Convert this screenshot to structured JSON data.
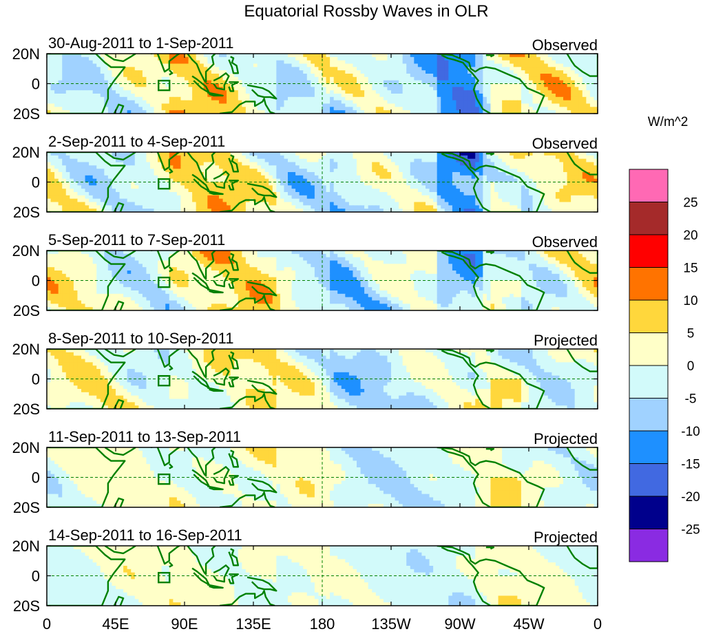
{
  "title": "Equatorial Rossby Waves in OLR",
  "units_label": "W/m^2",
  "lat_labels": [
    "20N",
    "0",
    "20S"
  ],
  "lon_labels": [
    "0",
    "45E",
    "90E",
    "135E",
    "180",
    "135W",
    "90W",
    "45W",
    "0"
  ],
  "panels": [
    {
      "period": "30-Aug-2011 to 1-Sep-2011",
      "kind": "Observed",
      "seed": 1,
      "amp": 1.0
    },
    {
      "period": "2-Sep-2011 to 4-Sep-2011",
      "kind": "Observed",
      "seed": 2,
      "amp": 1.0
    },
    {
      "period": "5-Sep-2011 to 7-Sep-2011",
      "kind": "Observed",
      "seed": 3,
      "amp": 0.95
    },
    {
      "period": "8-Sep-2011 to 10-Sep-2011",
      "kind": "Projected",
      "seed": 4,
      "amp": 0.8
    },
    {
      "period": "11-Sep-2011 to 13-Sep-2011",
      "kind": "Projected",
      "seed": 5,
      "amp": 0.6
    },
    {
      "period": "14-Sep-2011 to 16-Sep-2011",
      "kind": "Projected",
      "seed": 6,
      "amp": 0.45
    }
  ],
  "colorbar": {
    "labels": [
      "25",
      "20",
      "15",
      "10",
      "5",
      "0",
      "-5",
      "-10",
      "-15",
      "-20",
      "-25"
    ],
    "colors_top_to_bottom": [
      "#ff69b4",
      "#a52a2a",
      "#ff0000",
      "#ff7300",
      "#ffd73c",
      "#ffffc8",
      "#d2fafa",
      "#a0d2ff",
      "#1e90ff",
      "#4169e1",
      "#00008c",
      "#8a2be2"
    ]
  },
  "colors": {
    "coast": "#008000",
    "grid": "#008000"
  },
  "chart_data": {
    "type": "heatmap",
    "title": "Equatorial Rossby Waves in OLR",
    "units": "W/m^2",
    "x_axis": {
      "ticks": [
        "0",
        "45E",
        "90E",
        "135E",
        "180",
        "135W",
        "90W",
        "45W",
        "0"
      ],
      "range_deg": [
        0,
        360
      ]
    },
    "y_axis": {
      "ticks": [
        "20N",
        "0",
        "20S"
      ],
      "range_deg": [
        -20,
        20
      ]
    },
    "levels": [
      -25,
      -20,
      -15,
      -10,
      -5,
      0,
      5,
      10,
      15,
      20,
      25
    ],
    "panels": [
      "30-Aug-2011 to 1-Sep-2011 (Observed)",
      "2-Sep-2011 to 4-Sep-2011 (Observed)",
      "5-Sep-2011 to 7-Sep-2011 (Observed)",
      "8-Sep-2011 to 10-Sep-2011 (Projected)",
      "11-Sep-2011 to 13-Sep-2011 (Projected)",
      "14-Sep-2011 to 16-Sep-2011 (Projected)"
    ]
  }
}
